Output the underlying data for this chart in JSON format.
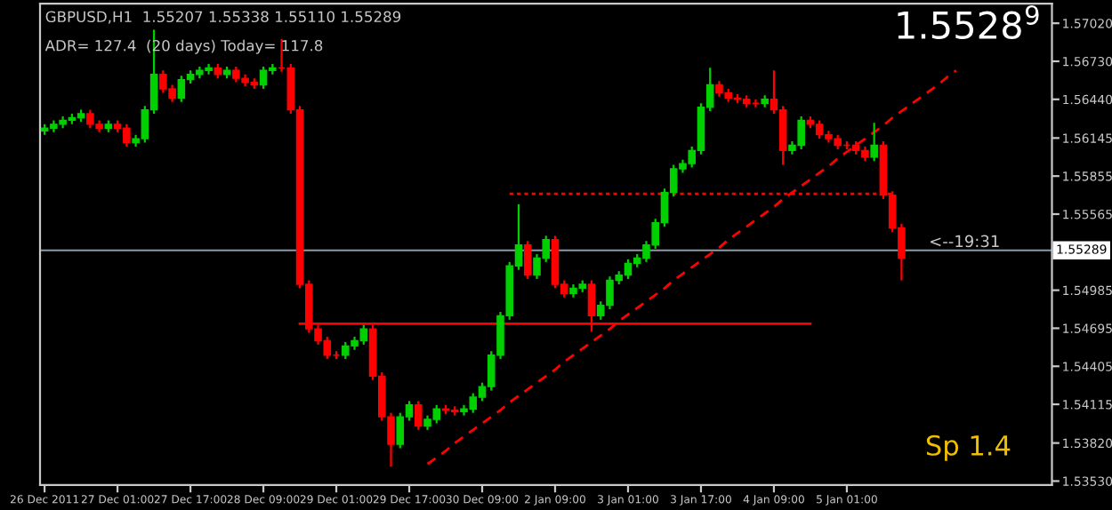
{
  "chart_data": {
    "type": "candlestick",
    "title": "GBPUSD,H1  1.55207 1.55338 1.55110 1.55289",
    "subtitle": "ADR= 127.4  (20 days) Today= 117.8",
    "annotations": [
      "<--19:31",
      "1.5528$^{9}$",
      "Sp 1.4"
    ],
    "categories": [
      "26 Dec 2011",
      null,
      null,
      null,
      null,
      null,
      null,
      null,
      "27 Dec 01:00",
      null,
      null,
      null,
      null,
      null,
      null,
      null,
      "27 Dec 17:00",
      null,
      null,
      null,
      null,
      null,
      null,
      null,
      "28 Dec 09:00",
      null,
      null,
      null,
      null,
      null,
      null,
      null,
      "29 Dec 01:00",
      null,
      null,
      null,
      null,
      null,
      null,
      null,
      "29 Dec 17:00",
      null,
      null,
      null,
      null,
      null,
      null,
      null,
      "30 Dec 09:00",
      null,
      null,
      null,
      null,
      null,
      null,
      null,
      "2 Jan 09:00",
      null,
      null,
      null,
      null,
      null,
      null,
      null,
      "3 Jan 01:00",
      null,
      null,
      null,
      null,
      null,
      null,
      null,
      "3 Jan 17:00",
      null,
      null,
      null,
      null,
      null,
      null,
      null,
      "4 Jan 09:00",
      null,
      null,
      null,
      null,
      null,
      null,
      null,
      "5 Jan 01:00",
      null,
      null,
      null,
      null,
      null,
      null,
      null,
      null,
      null,
      null,
      null,
      null,
      null,
      null,
      null,
      null,
      null,
      null,
      null,
      null,
      null,
      null
    ],
    "ohlc": [
      [
        1.562,
        1.5625,
        1.5617,
        1.5622
      ],
      [
        1.5622,
        1.5628,
        1.5619,
        1.5625
      ],
      [
        1.5625,
        1.5631,
        1.5622,
        1.5628
      ],
      [
        1.5628,
        1.5633,
        1.5625,
        1.563
      ],
      [
        1.563,
        1.5636,
        1.5627,
        1.5633
      ],
      [
        1.5633,
        1.5636,
        1.5622,
        1.5625
      ],
      [
        1.5625,
        1.5628,
        1.5619,
        1.5622
      ],
      [
        1.5622,
        1.5628,
        1.5619,
        1.5625
      ],
      [
        1.5625,
        1.5628,
        1.5619,
        1.5622
      ],
      [
        1.5622,
        1.5625,
        1.5608,
        1.5611
      ],
      [
        1.5611,
        1.5617,
        1.5608,
        1.5614
      ],
      [
        1.5614,
        1.5639,
        1.5611,
        1.5636
      ],
      [
        1.5636,
        1.5697,
        1.5633,
        1.5663
      ],
      [
        1.5663,
        1.5666,
        1.5649,
        1.5652
      ],
      [
        1.5652,
        1.5655,
        1.5642,
        1.5645
      ],
      [
        1.5645,
        1.5662,
        1.5642,
        1.5659
      ],
      [
        1.5659,
        1.5666,
        1.5656,
        1.5663
      ],
      [
        1.5663,
        1.5669,
        1.566,
        1.5666
      ],
      [
        1.5666,
        1.5671,
        1.5663,
        1.5668
      ],
      [
        1.5668,
        1.5671,
        1.566,
        1.5663
      ],
      [
        1.5663,
        1.5669,
        1.566,
        1.5666
      ],
      [
        1.5666,
        1.5669,
        1.5657,
        1.566
      ],
      [
        1.566,
        1.5663,
        1.5654,
        1.5657
      ],
      [
        1.5657,
        1.566,
        1.5652,
        1.5655
      ],
      [
        1.5655,
        1.5669,
        1.5652,
        1.5666
      ],
      [
        1.5666,
        1.5671,
        1.5663,
        1.5668
      ],
      [
        1.5668,
        1.569,
        1.5665,
        1.5668
      ],
      [
        1.5668,
        1.5671,
        1.5633,
        1.5636
      ],
      [
        1.5636,
        1.5639,
        1.55,
        1.5503
      ],
      [
        1.5503,
        1.5506,
        1.5466,
        1.5469
      ],
      [
        1.5469,
        1.5472,
        1.5457,
        1.546
      ],
      [
        1.546,
        1.5463,
        1.5446,
        1.5449
      ],
      [
        1.5449,
        1.5452,
        1.5446,
        1.5449
      ],
      [
        1.5449,
        1.5459,
        1.5446,
        1.5456
      ],
      [
        1.5456,
        1.5463,
        1.5453,
        1.546
      ],
      [
        1.546,
        1.5472,
        1.5457,
        1.5469
      ],
      [
        1.5469,
        1.5472,
        1.543,
        1.5433
      ],
      [
        1.5433,
        1.5436,
        1.5399,
        1.5402
      ],
      [
        1.5402,
        1.5405,
        1.5364,
        1.5381
      ],
      [
        1.5381,
        1.5405,
        1.5378,
        1.5402
      ],
      [
        1.5402,
        1.5414,
        1.5399,
        1.5411
      ],
      [
        1.5411,
        1.5414,
        1.5392,
        1.5395
      ],
      [
        1.5395,
        1.5403,
        1.5392,
        1.54
      ],
      [
        1.54,
        1.5411,
        1.5397,
        1.5408
      ],
      [
        1.5408,
        1.5411,
        1.5404,
        1.5407
      ],
      [
        1.5407,
        1.541,
        1.5403,
        1.5406
      ],
      [
        1.5406,
        1.5411,
        1.5403,
        1.5408
      ],
      [
        1.5408,
        1.542,
        1.5405,
        1.5417
      ],
      [
        1.5417,
        1.5428,
        1.5414,
        1.5425
      ],
      [
        1.5425,
        1.5452,
        1.5422,
        1.5449
      ],
      [
        1.5449,
        1.5482,
        1.5446,
        1.5479
      ],
      [
        1.5479,
        1.552,
        1.5476,
        1.5517
      ],
      [
        1.5517,
        1.5564,
        1.5514,
        1.5533
      ],
      [
        1.5533,
        1.5536,
        1.5507,
        1.551
      ],
      [
        1.551,
        1.5526,
        1.5507,
        1.5523
      ],
      [
        1.5523,
        1.554,
        1.552,
        1.5537
      ],
      [
        1.5537,
        1.554,
        1.55,
        1.5503
      ],
      [
        1.5503,
        1.5506,
        1.5493,
        1.5496
      ],
      [
        1.5496,
        1.5503,
        1.5493,
        1.55
      ],
      [
        1.55,
        1.5506,
        1.5497,
        1.5503
      ],
      [
        1.5503,
        1.5506,
        1.5467,
        1.5479
      ],
      [
        1.5479,
        1.549,
        1.5476,
        1.5487
      ],
      [
        1.5487,
        1.5509,
        1.5484,
        1.5506
      ],
      [
        1.5506,
        1.5513,
        1.5503,
        1.551
      ],
      [
        1.551,
        1.5522,
        1.5507,
        1.5519
      ],
      [
        1.5519,
        1.5526,
        1.5516,
        1.5523
      ],
      [
        1.5523,
        1.5536,
        1.552,
        1.5533
      ],
      [
        1.5533,
        1.5553,
        1.553,
        1.555
      ],
      [
        1.555,
        1.5576,
        1.5547,
        1.5573
      ],
      [
        1.5573,
        1.5594,
        1.557,
        1.5591
      ],
      [
        1.5591,
        1.5598,
        1.5588,
        1.5595
      ],
      [
        1.5595,
        1.5608,
        1.5592,
        1.5605
      ],
      [
        1.5605,
        1.5641,
        1.5602,
        1.5638
      ],
      [
        1.5638,
        1.5668,
        1.5635,
        1.5655
      ],
      [
        1.5655,
        1.5658,
        1.5646,
        1.5649
      ],
      [
        1.5649,
        1.5652,
        1.5642,
        1.5645
      ],
      [
        1.5645,
        1.5648,
        1.5641,
        1.5644
      ],
      [
        1.5644,
        1.5647,
        1.5638,
        1.5641
      ],
      [
        1.5641,
        1.5644,
        1.5638,
        1.5641
      ],
      [
        1.5641,
        1.5647,
        1.5638,
        1.5644
      ],
      [
        1.5644,
        1.5666,
        1.5633,
        1.5636
      ],
      [
        1.5636,
        1.5639,
        1.5594,
        1.5605
      ],
      [
        1.5605,
        1.5612,
        1.5602,
        1.5609
      ],
      [
        1.5609,
        1.5631,
        1.5606,
        1.5628
      ],
      [
        1.5628,
        1.5631,
        1.5622,
        1.5625
      ],
      [
        1.5625,
        1.5628,
        1.5614,
        1.5617
      ],
      [
        1.5617,
        1.562,
        1.5611,
        1.5614
      ],
      [
        1.5614,
        1.5617,
        1.5606,
        1.5609
      ],
      [
        1.5609,
        1.5612,
        1.5606,
        1.5609
      ],
      [
        1.5609,
        1.5612,
        1.5602,
        1.5605
      ],
      [
        1.5605,
        1.5608,
        1.5597,
        1.56
      ],
      [
        1.56,
        1.5626,
        1.5597,
        1.5609
      ],
      [
        1.5609,
        1.5612,
        1.5568,
        1.5571
      ],
      [
        1.5571,
        1.5574,
        1.5543,
        1.5546
      ],
      [
        1.5546,
        1.5549,
        1.5506,
        1.5523
      ],
      null,
      null,
      null,
      null,
      null,
      null,
      null,
      null,
      null,
      null,
      null,
      null,
      null,
      null,
      null,
      null
    ],
    "colors": [
      "#00d000",
      "#00d000",
      "#00d000",
      "#00d000",
      "#00d000",
      "#ff0000",
      "#ff0000",
      "#00d000",
      "#ff0000",
      "#ff0000",
      "#00d000",
      "#00d000",
      "#00d000",
      "#ff0000",
      "#ff0000",
      "#00d000",
      "#00d000",
      "#00d000",
      "#00d000",
      "#ff0000",
      "#00d000",
      "#ff0000",
      "#ff0000",
      "#ff0000",
      "#00d000",
      "#00d000",
      "#ff0000",
      "#ff0000",
      "#ff0000",
      "#ff0000",
      "#ff0000",
      "#ff0000",
      "#ff0000",
      "#00d000",
      "#00d000",
      "#00d000",
      "#ff0000",
      "#ff0000",
      "#ff0000",
      "#00d000",
      "#00d000",
      "#ff0000",
      "#00d000",
      "#00d000",
      "#ff0000",
      "#ff0000",
      "#00d000",
      "#00d000",
      "#00d000",
      "#00d000",
      "#00d000",
      "#00d000",
      "#00d000",
      "#ff0000",
      "#00d000",
      "#00d000",
      "#ff0000",
      "#ff0000",
      "#00d000",
      "#00d000",
      "#ff0000",
      "#00d000",
      "#00d000",
      "#00d000",
      "#00d000",
      "#00d000",
      "#00d000",
      "#00d000",
      "#00d000",
      "#00d000",
      "#00d000",
      "#00d000",
      "#00d000",
      "#00d000",
      "#ff0000",
      "#ff0000",
      "#ff0000",
      "#ff0000",
      "#ff0000",
      "#00d000",
      "#ff0000",
      "#ff0000",
      "#00d000",
      "#00d000",
      "#ff0000",
      "#ff0000",
      "#ff0000",
      "#ff0000",
      "#ff0000",
      "#ff0000",
      "#ff0000",
      "#00d000",
      "#ff0000",
      "#ff0000",
      "#ff0000",
      null,
      null,
      null,
      null,
      null,
      null,
      null,
      null,
      null,
      null,
      null,
      null,
      null,
      null,
      null,
      null
    ],
    "series": [
      {
        "type": "line",
        "color": "#ff0000",
        "line_style": "solid",
        "values": [
          null,
          null,
          null,
          null,
          null,
          null,
          null,
          null,
          null,
          null,
          null,
          null,
          null,
          null,
          null,
          null,
          null,
          null,
          null,
          null,
          null,
          null,
          null,
          null,
          null,
          null,
          null,
          null,
          1.5473,
          1.5473,
          1.5473,
          1.5473,
          1.5473,
          1.5473,
          1.5473,
          1.5473,
          1.5473,
          1.5473,
          1.5473,
          1.5473,
          1.5473,
          1.5473,
          1.5473,
          1.5473,
          1.5473,
          1.5473,
          1.5473,
          1.5473,
          1.5473,
          1.5473,
          1.5473,
          1.5473,
          1.5473,
          1.5473,
          1.5473,
          1.5473,
          1.5473,
          1.5473,
          1.5473,
          1.5473,
          1.5473,
          1.5473,
          1.5473,
          1.5473,
          1.5473,
          1.5473,
          1.5473,
          1.5473,
          1.5473,
          1.5473,
          1.5473,
          1.5473,
          1.5473,
          1.5473,
          1.5473,
          1.5473,
          1.5473,
          1.5473,
          1.5473,
          1.5473,
          1.5473,
          1.5473,
          1.5473,
          1.5473,
          1.5473,
          null,
          null,
          null,
          null,
          null,
          null,
          null,
          null,
          null,
          null,
          null,
          null,
          null,
          null,
          null,
          null,
          null,
          null,
          null,
          null,
          null,
          null,
          null,
          null,
          null,
          null
        ]
      },
      {
        "type": "line",
        "color": "#ff0000",
        "line_style": "dotted",
        "values": [
          null,
          null,
          null,
          null,
          null,
          null,
          null,
          null,
          null,
          null,
          null,
          null,
          null,
          null,
          null,
          null,
          null,
          null,
          null,
          null,
          null,
          null,
          null,
          null,
          null,
          null,
          null,
          null,
          null,
          null,
          null,
          null,
          null,
          null,
          null,
          null,
          null,
          null,
          null,
          null,
          null,
          null,
          null,
          null,
          null,
          null,
          null,
          null,
          null,
          null,
          null,
          1.5572,
          1.5572,
          1.5572,
          1.5572,
          1.5572,
          1.5572,
          1.5572,
          1.5572,
          1.5572,
          1.5572,
          1.5572,
          1.5572,
          1.5572,
          1.5572,
          1.5572,
          1.5572,
          1.5572,
          1.5572,
          1.5572,
          1.5572,
          1.5572,
          1.5572,
          1.5572,
          1.5572,
          1.5572,
          1.5572,
          1.5572,
          1.5572,
          1.5572,
          1.5572,
          1.5572,
          1.5572,
          1.5572,
          1.5572,
          1.5572,
          1.5572,
          1.5572,
          1.5572,
          1.5572,
          1.5572,
          1.5572,
          1.5572,
          1.5572,
          null,
          null,
          null,
          null,
          null,
          null,
          null,
          null,
          null,
          null,
          null,
          null,
          null,
          null,
          null,
          null,
          null
        ]
      },
      {
        "type": "line",
        "color": "#ff0000",
        "line_style": "dashed",
        "values": [
          null,
          null,
          null,
          null,
          null,
          null,
          null,
          null,
          null,
          null,
          null,
          null,
          null,
          null,
          null,
          null,
          null,
          null,
          null,
          null,
          null,
          null,
          null,
          null,
          null,
          null,
          null,
          null,
          null,
          null,
          null,
          null,
          null,
          null,
          null,
          null,
          null,
          null,
          null,
          null,
          null,
          null,
          1.5366,
          1.5371,
          1.5376,
          1.5382,
          1.5387,
          1.5392,
          1.5397,
          1.5402,
          1.5407,
          1.5413,
          1.5418,
          1.5423,
          1.5428,
          1.5433,
          1.5438,
          1.5444,
          1.5449,
          1.5454,
          1.5459,
          1.5464,
          1.5469,
          1.5475,
          1.548,
          1.5485,
          1.549,
          1.5495,
          1.55,
          1.5506,
          1.5511,
          1.5516,
          1.5521,
          1.5526,
          1.5531,
          1.5537,
          1.5542,
          1.5547,
          1.5552,
          1.5557,
          1.5562,
          1.5568,
          1.5573,
          1.5578,
          1.5583,
          1.5588,
          1.5593,
          1.5599,
          1.5604,
          1.5609,
          1.5614,
          1.5619,
          1.5624,
          1.563,
          1.5635,
          1.564,
          1.5645,
          1.565,
          1.5655,
          1.5661,
          1.5666,
          null,
          null,
          null,
          null,
          null,
          null,
          null,
          null,
          null,
          null
        ]
      }
    ],
    "ref_lines": [
      {
        "axis": "y",
        "value": 1.55289,
        "label": "1.55289",
        "color": "#8a9aa8",
        "line_style": "solid"
      }
    ],
    "ylim": [
      1.535,
      1.5717
    ],
    "yticks": [
      {
        "value": 1.5353,
        "label": "1.53530"
      },
      {
        "value": 1.5382,
        "label": "1.53820"
      },
      1.54115,
      1.54405,
      1.54695,
      1.54985,
      1.55565,
      1.55855,
      1.56145,
      {
        "value": 1.5644,
        "label": "1.56440"
      },
      {
        "value": 1.5673,
        "label": "1.56730"
      },
      {
        "value": 1.5702,
        "label": "1.57020"
      }
    ],
    "grid": false,
    "legend": false
  }
}
